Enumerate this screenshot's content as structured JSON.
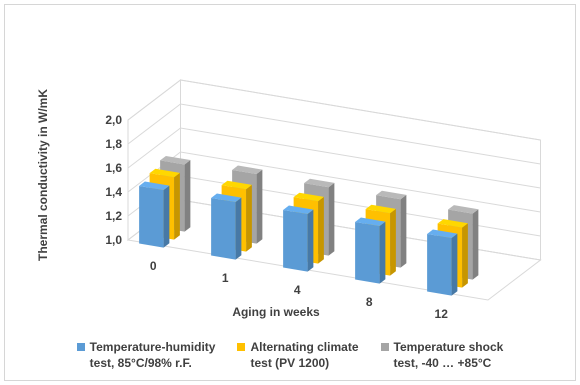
{
  "chart_data": {
    "type": "bar",
    "variant": "3d-clustered-column",
    "ylabel": "Thermal conductivity in W/mK",
    "xlabel": "Aging in weeks",
    "categories": [
      "0",
      "1",
      "4",
      "8",
      "12"
    ],
    "ylim": [
      1.0,
      2.0
    ],
    "yticks": [
      "1,0",
      "1,2",
      "1,4",
      "1,6",
      "1,8",
      "2,0"
    ],
    "grid": true,
    "legend_position": "bottom",
    "series": [
      {
        "name": "Temperature-humidity test, 85°C/98% r.F.",
        "legend_lines": [
          "Temperature-humidity",
          "test, 85°C/98% r.F."
        ],
        "color": "#5b9bd5",
        "values": [
          1.48,
          1.48,
          1.48,
          1.48,
          1.48
        ]
      },
      {
        "name": "Alternating climate test (PV 1200)",
        "legend_lines": [
          "Alternating climate",
          "test (PV 1200)"
        ],
        "color": "#ffc000",
        "values": [
          1.52,
          1.52,
          1.52,
          1.52,
          1.5
        ]
      },
      {
        "name": "Temperature shock test, -40 ... +85°C",
        "legend_lines": [
          "Temperature shock",
          "test, -40 … +85°C"
        ],
        "color": "#a5a5a5",
        "values": [
          1.56,
          1.58,
          1.57,
          1.57,
          1.55
        ]
      }
    ]
  }
}
